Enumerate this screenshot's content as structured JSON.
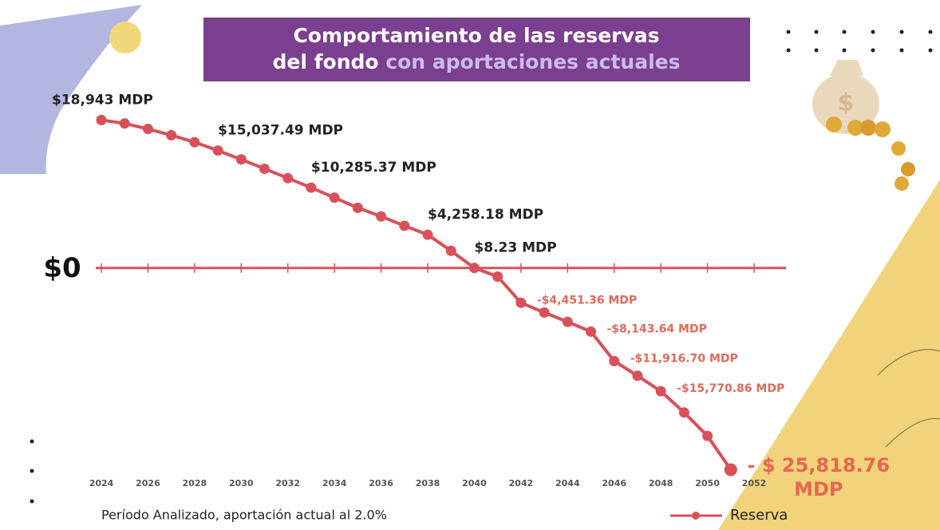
{
  "chart_data": {
    "type": "line",
    "title_line1": "Comportamiento de las reservas",
    "title_line2": "del fondo",
    "title_highlight": "con aportaciones actuales",
    "note": "Período Analizado, aportación actual al 2.0%",
    "x": [
      2024,
      2025,
      2026,
      2027,
      2028,
      2029,
      2030,
      2031,
      2032,
      2033,
      2034,
      2035,
      2036,
      2037,
      2038,
      2039,
      2040,
      2041,
      2042,
      2043,
      2044,
      2045,
      2046,
      2047,
      2048,
      2049,
      2050,
      2051
    ],
    "xlim": [
      2024,
      2052
    ],
    "xticks": [
      2024,
      2026,
      2028,
      2030,
      2032,
      2034,
      2036,
      2038,
      2040,
      2042,
      2044,
      2046,
      2048,
      2050,
      2052
    ],
    "ylim": [
      -27000,
      20000
    ],
    "yticks": [
      {
        "value": 0,
        "label": "$0"
      }
    ],
    "legend": "bottom-right",
    "series": [
      {
        "name": "Reserva",
        "color": "#d9505a",
        "values": [
          18943,
          18500,
          17800,
          17000,
          16100,
          15037.49,
          13900,
          12700,
          11500,
          10285.37,
          9000,
          7700,
          6600,
          5400,
          4258.18,
          2200,
          8.23,
          -1100,
          -4451.36,
          -5700,
          -6900,
          -8143.64,
          -11916.7,
          -13800,
          -15770.86,
          -18500,
          -21500,
          -25818.76
        ],
        "value_labels": [
          "$18,943 MDP",
          null,
          null,
          null,
          null,
          "$15,037.49 MDP",
          null,
          null,
          null,
          "$10,285.37 MDP",
          null,
          null,
          null,
          null,
          "$4,258.18 MDP",
          null,
          "$8.23 MDP",
          null,
          "-$4,451.36 MDP",
          null,
          null,
          "-$8,143.64 MDP",
          "-$11,916.70 MDP",
          null,
          "-$15,770.86 MDP",
          null,
          null,
          "- $ 25,818.76 MDP"
        ]
      }
    ]
  }
}
